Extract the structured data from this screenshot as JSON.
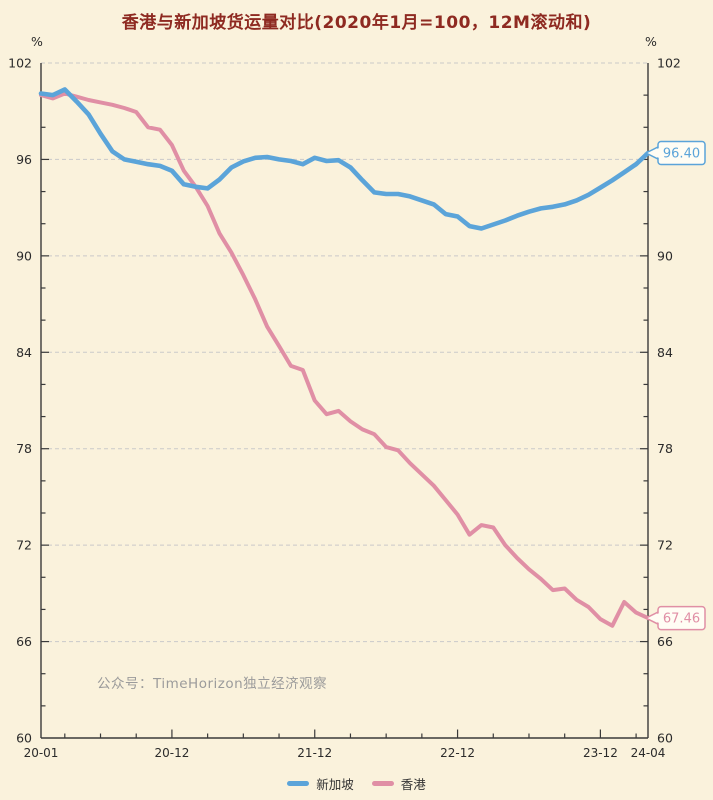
{
  "title": {
    "text": "香港与新加坡货运量对比(2020年1月=100，12M滚动和)",
    "color": "#8e2a21"
  },
  "watermark": {
    "text": "公众号：TimeHorizon独立经济观察",
    "color": "#9b9b9b"
  },
  "legend": {
    "items": [
      {
        "label": "新加坡",
        "color": "#5ba4d9"
      },
      {
        "label": "香港",
        "color": "#e08fa5"
      }
    ]
  },
  "colors": {
    "background": "#faf2dc",
    "axis": "#3a3a3a",
    "grid": "#c9c9c9",
    "tick_label": "#2b2b2b",
    "legend_text": "#333333",
    "callout_bg": "#fffdf4"
  },
  "chart_data": {
    "type": "line",
    "title": "香港与新加坡货运量对比(2020年1月=100，12M滚动和)",
    "y_unit": "%",
    "ylim": [
      60,
      102
    ],
    "y_ticks": [
      102,
      96,
      90,
      84,
      78,
      72,
      66,
      60
    ],
    "y_minor_step": 2,
    "grid": "horizontal-dashed",
    "legend_position": "bottom",
    "x_months": {
      "start": "2020-01",
      "end": "2024-04",
      "count": 52
    },
    "x_ticks": [
      {
        "label": "20-01",
        "month": 0
      },
      {
        "label": "20-12",
        "month": 11
      },
      {
        "label": "21-12",
        "month": 23
      },
      {
        "label": "22-12",
        "month": 35
      },
      {
        "label": "23-12",
        "month": 47
      },
      {
        "label": "24-04",
        "month": 51
      }
    ],
    "series": [
      {
        "name": "新加坡",
        "color": "#5ba4d9",
        "stroke_width": 4.6,
        "end_label": "96.40",
        "values": [
          100.1,
          100.0,
          100.35,
          99.6,
          98.8,
          97.6,
          96.5,
          96.0,
          95.85,
          95.7,
          95.6,
          95.3,
          94.45,
          94.3,
          94.2,
          94.75,
          95.5,
          95.88,
          96.1,
          96.15,
          96.0,
          95.9,
          95.7,
          96.1,
          95.9,
          95.95,
          95.5,
          94.7,
          93.95,
          93.85,
          93.85,
          93.7,
          93.45,
          93.2,
          92.6,
          92.45,
          91.85,
          91.7,
          91.95,
          92.2,
          92.5,
          92.75,
          92.95,
          93.05,
          93.2,
          93.45,
          93.8,
          94.25,
          94.7,
          95.2,
          95.7,
          96.4
        ]
      },
      {
        "name": "香港",
        "color": "#e08fa5",
        "stroke_width": 4.0,
        "end_label": "67.46",
        "values": [
          100.0,
          99.8,
          100.1,
          99.9,
          99.7,
          99.55,
          99.4,
          99.2,
          98.95,
          98.0,
          97.85,
          96.9,
          95.3,
          94.3,
          93.1,
          91.4,
          90.2,
          88.8,
          87.3,
          85.6,
          84.4,
          83.15,
          82.9,
          81.0,
          80.15,
          80.35,
          79.7,
          79.2,
          78.9,
          78.1,
          77.9,
          77.1,
          76.4,
          75.7,
          74.8,
          73.9,
          72.65,
          73.25,
          73.1,
          72.0,
          71.2,
          70.5,
          69.9,
          69.2,
          69.3,
          68.6,
          68.15,
          67.4,
          66.98,
          68.46,
          67.8,
          67.46
        ]
      }
    ]
  }
}
